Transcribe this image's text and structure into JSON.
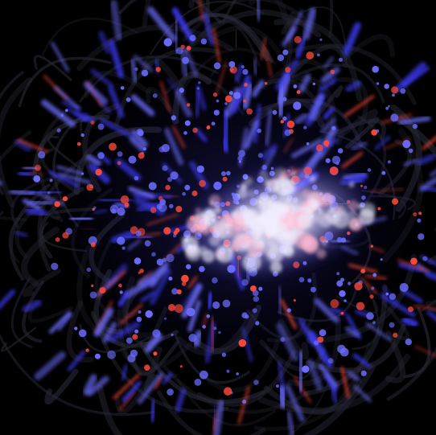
{
  "scene": {
    "subject": "particle-swarm",
    "background_color": "#000000",
    "palette": {
      "trail_dark": "#2a2a3a",
      "blue": "#3f3cff",
      "blue_light": "#6c6cff",
      "red": "#ff4a3a",
      "core_white": "#f1eeff",
      "core_pink": "#ffb8d0"
    }
  }
}
